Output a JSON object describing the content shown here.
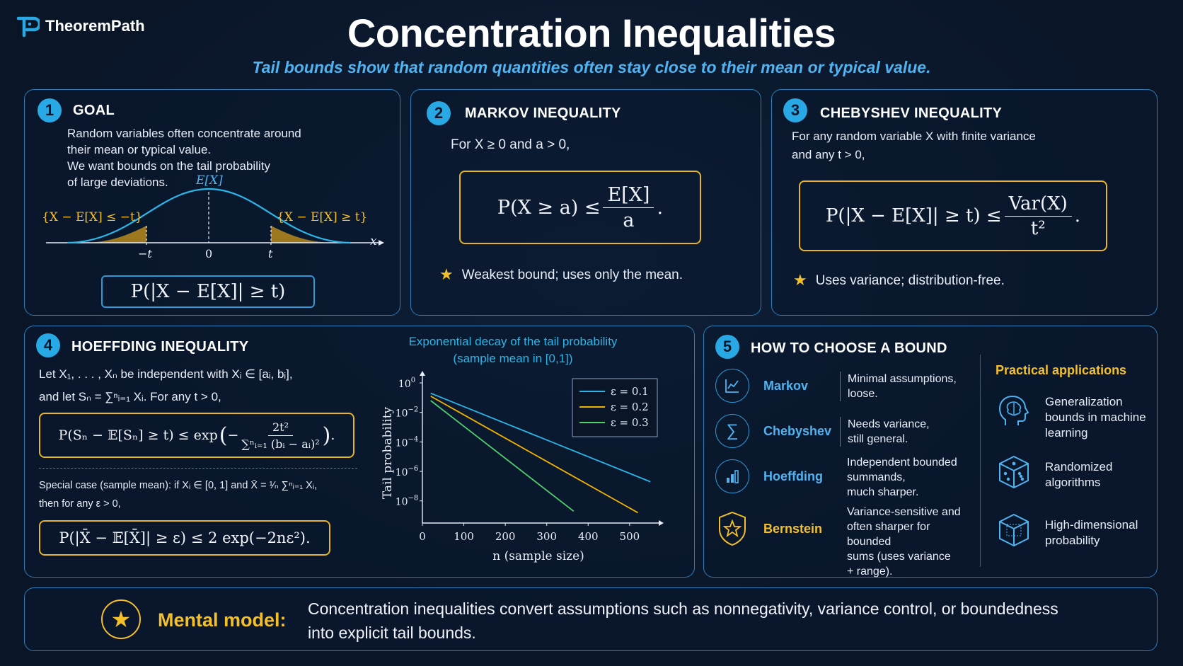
{
  "brand": {
    "name": "TheoremPath"
  },
  "header": {
    "title": "Concentration Inequalities",
    "subtitle": "Tail bounds show that random quantities often stay close to their mean or typical value."
  },
  "panels": {
    "goal": {
      "number": "1",
      "title": "GOAL",
      "lines": [
        "Random variables often concentrate around",
        "their mean or typical value.",
        "We want bounds on the tail probability",
        "of large deviations."
      ],
      "labels": {
        "mean": "E[X]",
        "left_tail": "{X − E[X] ≤ −t}",
        "right_tail": "{X − E[X] ≥ t}",
        "tick_neg_t": "−t",
        "tick_zero": "0",
        "tick_t": "t",
        "axis_x": "x"
      },
      "formula": "P(|X − E[X]| ≥ t)"
    },
    "markov": {
      "number": "2",
      "title": "MARKOV INEQUALITY",
      "condition": "For X ≥ 0 and a > 0,",
      "formula_lhs": "P(X ≥ a) ≤",
      "formula_num": "E[X]",
      "formula_den": "a",
      "formula_end": ".",
      "note": "Weakest bound; uses only the mean."
    },
    "chebyshev": {
      "number": "3",
      "title": "CHEBYSHEV INEQUALITY",
      "condition_1": "For any random variable X with finite variance",
      "condition_2": "and any t > 0,",
      "formula_lhs": "P(|X − E[X]| ≥ t) ≤",
      "formula_num": "Var(X)",
      "formula_den": "t²",
      "formula_end": ".",
      "note": "Uses variance; distribution-free."
    },
    "hoeffding": {
      "number": "4",
      "title": "HOEFFDING INEQUALITY",
      "line_1": "Let X₁, . . . , Xₙ be independent with Xᵢ ∈ [aᵢ, bᵢ],",
      "line_2": "and let Sₙ = ∑ⁿᵢ₌₁ Xᵢ. For any t > 0,",
      "formula_lhs": "P(Sₙ − 𝔼[Sₙ] ≥ t) ≤ exp",
      "formula_num": "2t²",
      "formula_den": "∑ⁿᵢ₌₁ (bᵢ − aᵢ)²",
      "special_1": "Special case (sample mean): if Xᵢ ∈ [0, 1] and X̄ = ¹⁄ₙ ∑ⁿᵢ₌₁ Xᵢ,",
      "special_2": "then for any ε > 0,",
      "formula_2": "P(|X̄ − 𝔼[X̄]| ≥ ε) ≤ 2 exp(−2nε²)."
    },
    "choose": {
      "number": "5",
      "title": "HOW TO CHOOSE A BOUND",
      "rows": [
        {
          "name": "Markov",
          "icon": "line-chart-icon",
          "desc": [
            "Minimal assumptions,",
            "loose."
          ]
        },
        {
          "name": "Chebyshev",
          "icon": "sigma-icon",
          "desc": [
            "Needs variance,",
            "still general."
          ]
        },
        {
          "name": "Hoeffding",
          "icon": "bar-chart-icon",
          "desc": [
            "Independent bounded",
            "summands,",
            "much sharper."
          ]
        },
        {
          "name": "Bernstein",
          "icon": "star-badge-icon",
          "desc": [
            "Variance-sensitive and",
            "often sharper for bounded",
            "sums (uses variance",
            "+ range)."
          ]
        }
      ],
      "apps_title": "Practical applications",
      "apps": [
        {
          "icon": "brain-head-icon",
          "lines": [
            "Generalization",
            "bounds in machine",
            "learning"
          ]
        },
        {
          "icon": "dice-icon",
          "lines": [
            "Randomized",
            "algorithms"
          ]
        },
        {
          "icon": "cube-icon",
          "lines": [
            "High-dimensional",
            "probability"
          ]
        }
      ]
    }
  },
  "footer": {
    "label": "Mental model:",
    "text_1": "Concentration inequalities convert assumptions such as nonnegativity, variance control, or boundedness",
    "text_2": "into explicit tail bounds."
  },
  "colors": {
    "accent": "#29a8e6",
    "gold": "#f4c02a",
    "series_1": "#29b6e8",
    "series_2": "#f0b400",
    "series_3": "#4fd06a"
  },
  "chart_data": {
    "type": "line",
    "title": "Exponential decay of the tail probability",
    "subtitle": "(sample mean in [0,1])",
    "xlabel": "n (sample size)",
    "ylabel": "Tail probability",
    "xlim": [
      0,
      560
    ],
    "ylim_log10": [
      -9.5,
      0
    ],
    "y_scale": "log",
    "x_ticks": [
      0,
      100,
      200,
      300,
      400,
      500
    ],
    "y_ticks_exp": [
      0,
      -2,
      -4,
      -6,
      -8
    ],
    "legend_position": "top-right",
    "series": [
      {
        "name": "ε = 0.1",
        "x": [
          20,
          550
        ],
        "log10_y": [
          -0.7,
          -6.7
        ]
      },
      {
        "name": "ε = 0.2",
        "x": [
          20,
          520
        ],
        "log10_y": [
          -0.9,
          -8.8
        ]
      },
      {
        "name": "ε = 0.3",
        "x": [
          20,
          365
        ],
        "log10_y": [
          -1.2,
          -8.7
        ]
      }
    ]
  }
}
